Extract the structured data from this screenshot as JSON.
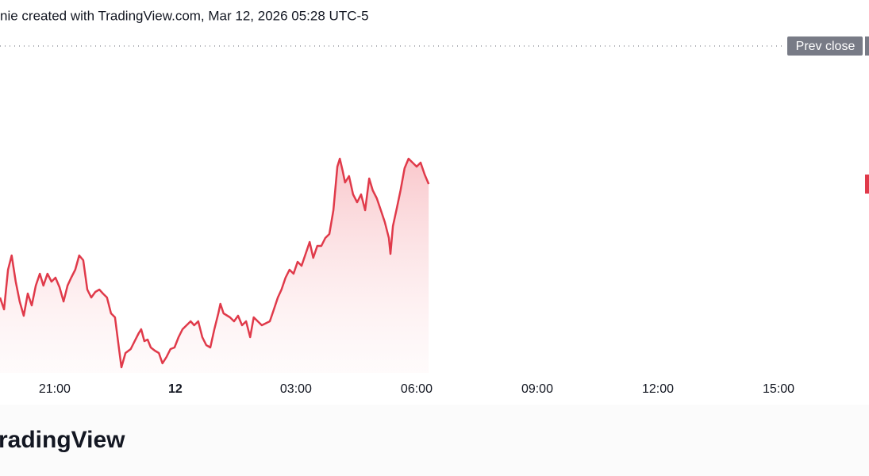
{
  "header": "nie created with TradingView.com, Mar 12, 2026 05:28 UTC-5",
  "footer": "radingView",
  "chart_data": {
    "type": "area",
    "x": [
      -4.36,
      -4.26,
      -4.16,
      -4.07,
      -3.97,
      -3.87,
      -3.77,
      -3.67,
      -3.57,
      -3.47,
      -3.37,
      -3.28,
      -3.18,
      -3.08,
      -2.98,
      -2.88,
      -2.78,
      -2.68,
      -2.59,
      -2.49,
      -2.39,
      -2.29,
      -2.19,
      -2.09,
      -1.99,
      -1.89,
      -1.8,
      -1.7,
      -1.6,
      -1.5,
      -1.4,
      -1.34,
      -1.24,
      -1.11,
      -1.01,
      -0.91,
      -0.85,
      -0.77,
      -0.69,
      -0.61,
      -0.51,
      -0.41,
      -0.32,
      -0.22,
      -0.12,
      -0.02,
      0.08,
      0.18,
      0.28,
      0.38,
      0.47,
      0.57,
      0.67,
      0.77,
      0.87,
      0.97,
      1.07,
      1.12,
      1.2,
      1.36,
      1.46,
      1.56,
      1.66,
      1.76,
      1.86,
      1.95,
      2.05,
      2.15,
      2.35,
      2.45,
      2.55,
      2.64,
      2.74,
      2.84,
      2.94,
      3.04,
      3.14,
      3.24,
      3.34,
      3.43,
      3.53,
      3.63,
      3.73,
      3.83,
      3.93,
      4.03,
      4.09,
      4.16,
      4.22,
      4.32,
      4.42,
      4.52,
      4.62,
      4.72,
      4.82,
      4.91,
      5.01,
      5.11,
      5.21,
      5.31,
      5.35,
      5.41,
      5.51,
      5.6,
      5.7,
      5.8,
      5.9,
      6.0,
      6.1,
      6.2,
      6.3
    ],
    "series": [
      {
        "color": "#e03a4a",
        "values": [
          95,
          80,
          130,
          148,
          115,
          90,
          72,
          100,
          85,
          110,
          125,
          110,
          125,
          115,
          120,
          108,
          90,
          110,
          120,
          130,
          148,
          142,
          105,
          95,
          102,
          105,
          100,
          95,
          75,
          70,
          30,
          7,
          25,
          30,
          40,
          50,
          55,
          40,
          42,
          32,
          28,
          25,
          12,
          20,
          30,
          32,
          45,
          55,
          60,
          65,
          60,
          65,
          45,
          35,
          32,
          55,
          75,
          87,
          75,
          70,
          65,
          72,
          60,
          65,
          45,
          70,
          65,
          60,
          65,
          80,
          95,
          105,
          120,
          130,
          125,
          140,
          135,
          150,
          165,
          145,
          160,
          160,
          170,
          175,
          205,
          260,
          270,
          255,
          240,
          248,
          225,
          215,
          225,
          205,
          245,
          230,
          220,
          205,
          190,
          170,
          150,
          185,
          208,
          230,
          258,
          270,
          265,
          260,
          265,
          250,
          238
        ]
      }
    ],
    "xlim": [
      -4.36,
      17.25
    ],
    "ylim": [
      0,
      430
    ],
    "xticks": [
      {
        "value": -3,
        "label": "21:00"
      },
      {
        "value": 0,
        "label": "12"
      },
      {
        "value": 3,
        "label": "03:00"
      },
      {
        "value": 6,
        "label": "06:00"
      },
      {
        "value": 9,
        "label": "09:00"
      },
      {
        "value": 12,
        "label": "12:00"
      },
      {
        "value": 15,
        "label": "15:00"
      }
    ],
    "prev_close": {
      "label": "Prev close",
      "value": 412
    }
  }
}
